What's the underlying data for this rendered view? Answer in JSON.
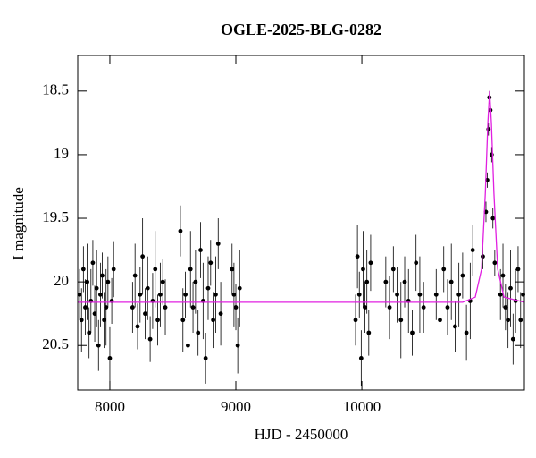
{
  "chart_data": {
    "type": "scatter",
    "title": "OGLE-2025-BLG-0282",
    "x_label": "HJD - 2450000",
    "y_label": "I magnitude",
    "xlim": [
      7745,
      11290
    ],
    "ylim": [
      18.22,
      20.85
    ],
    "y_inverted": true,
    "xticks": [
      8000,
      9000,
      10000
    ],
    "yticks": [
      18.5,
      19,
      19.5,
      20,
      20.5
    ],
    "point_color": "#000000",
    "x": [
      7760,
      7775,
      7790,
      7805,
      7820,
      7835,
      7850,
      7865,
      7880,
      7895,
      7910,
      7925,
      7940,
      7955,
      7970,
      7985,
      8000,
      8015,
      8030,
      8180,
      8200,
      8220,
      8240,
      8260,
      8280,
      8300,
      8320,
      8340,
      8360,
      8380,
      8400,
      8420,
      8440,
      8560,
      8580,
      8600,
      8620,
      8640,
      8660,
      8680,
      8700,
      8720,
      8740,
      8760,
      8780,
      8800,
      8820,
      8840,
      8860,
      8880,
      8970,
      8985,
      9000,
      9015,
      9030,
      9950,
      9965,
      9980,
      9995,
      10010,
      10025,
      10040,
      10055,
      10070,
      10190,
      10220,
      10250,
      10280,
      10310,
      10340,
      10370,
      10400,
      10430,
      10460,
      10490,
      10590,
      10620,
      10650,
      10680,
      10710,
      10740,
      10770,
      10800,
      10830,
      10860,
      10880,
      10960,
      10985,
      10995,
      11005,
      11012,
      11020,
      11030,
      11040,
      11055,
      11100,
      11120,
      11140,
      11160,
      11180,
      11200,
      11220,
      11240,
      11260,
      11280
    ],
    "values": [
      20.1,
      20.3,
      19.9,
      20.2,
      20.0,
      20.4,
      20.15,
      19.85,
      20.25,
      20.05,
      20.5,
      20.1,
      19.95,
      20.3,
      20.2,
      20.0,
      20.6,
      20.15,
      19.9,
      20.2,
      19.95,
      20.35,
      20.1,
      19.8,
      20.25,
      20.05,
      20.45,
      20.15,
      19.9,
      20.3,
      20.1,
      20.0,
      20.2,
      19.6,
      20.3,
      20.1,
      20.5,
      19.9,
      20.2,
      20.0,
      20.4,
      19.75,
      20.15,
      20.6,
      20.05,
      19.85,
      20.3,
      20.1,
      19.7,
      20.25,
      19.9,
      20.1,
      20.2,
      20.5,
      20.05,
      20.3,
      19.8,
      20.1,
      20.6,
      19.9,
      20.2,
      20.0,
      20.4,
      19.85,
      20.0,
      20.2,
      19.9,
      20.1,
      20.3,
      20.0,
      20.15,
      20.4,
      19.85,
      20.1,
      20.2,
      20.1,
      20.3,
      19.9,
      20.2,
      20.0,
      20.35,
      20.1,
      19.95,
      20.4,
      20.15,
      19.75,
      19.8,
      19.45,
      19.2,
      18.8,
      18.55,
      18.65,
      19.0,
      19.5,
      19.85,
      20.1,
      19.95,
      20.2,
      20.3,
      20.05,
      20.45,
      20.15,
      19.9,
      20.3,
      20.1
    ],
    "errors": [
      0.2,
      0.25,
      0.18,
      0.22,
      0.3,
      0.2,
      0.25,
      0.18,
      0.22,
      0.3,
      0.2,
      0.25,
      0.18,
      0.22,
      0.3,
      0.2,
      0.25,
      0.18,
      0.22,
      0.2,
      0.25,
      0.18,
      0.22,
      0.3,
      0.2,
      0.25,
      0.18,
      0.22,
      0.3,
      0.2,
      0.25,
      0.18,
      0.22,
      0.2,
      0.25,
      0.18,
      0.22,
      0.3,
      0.2,
      0.25,
      0.18,
      0.22,
      0.3,
      0.2,
      0.25,
      0.18,
      0.22,
      0.3,
      0.2,
      0.25,
      0.2,
      0.25,
      0.18,
      0.22,
      0.3,
      0.2,
      0.25,
      0.18,
      0.22,
      0.3,
      0.2,
      0.25,
      0.18,
      0.22,
      0.2,
      0.25,
      0.18,
      0.22,
      0.3,
      0.2,
      0.25,
      0.18,
      0.22,
      0.3,
      0.2,
      0.2,
      0.25,
      0.18,
      0.22,
      0.3,
      0.2,
      0.25,
      0.18,
      0.22,
      0.3,
      0.2,
      0.1,
      0.08,
      0.06,
      0.05,
      0.05,
      0.05,
      0.06,
      0.08,
      0.1,
      0.2,
      0.25,
      0.18,
      0.22,
      0.3,
      0.2,
      0.25,
      0.18,
      0.22,
      0.3
    ],
    "model": {
      "color": "#e020e0",
      "x": [
        7745,
        10800,
        10900,
        10950,
        10980,
        11000,
        11014,
        11028,
        11048,
        11078,
        11128,
        11290
      ],
      "values": [
        20.16,
        20.16,
        20.12,
        19.9,
        19.3,
        18.75,
        18.5,
        18.75,
        19.3,
        19.9,
        20.12,
        20.16
      ]
    }
  }
}
